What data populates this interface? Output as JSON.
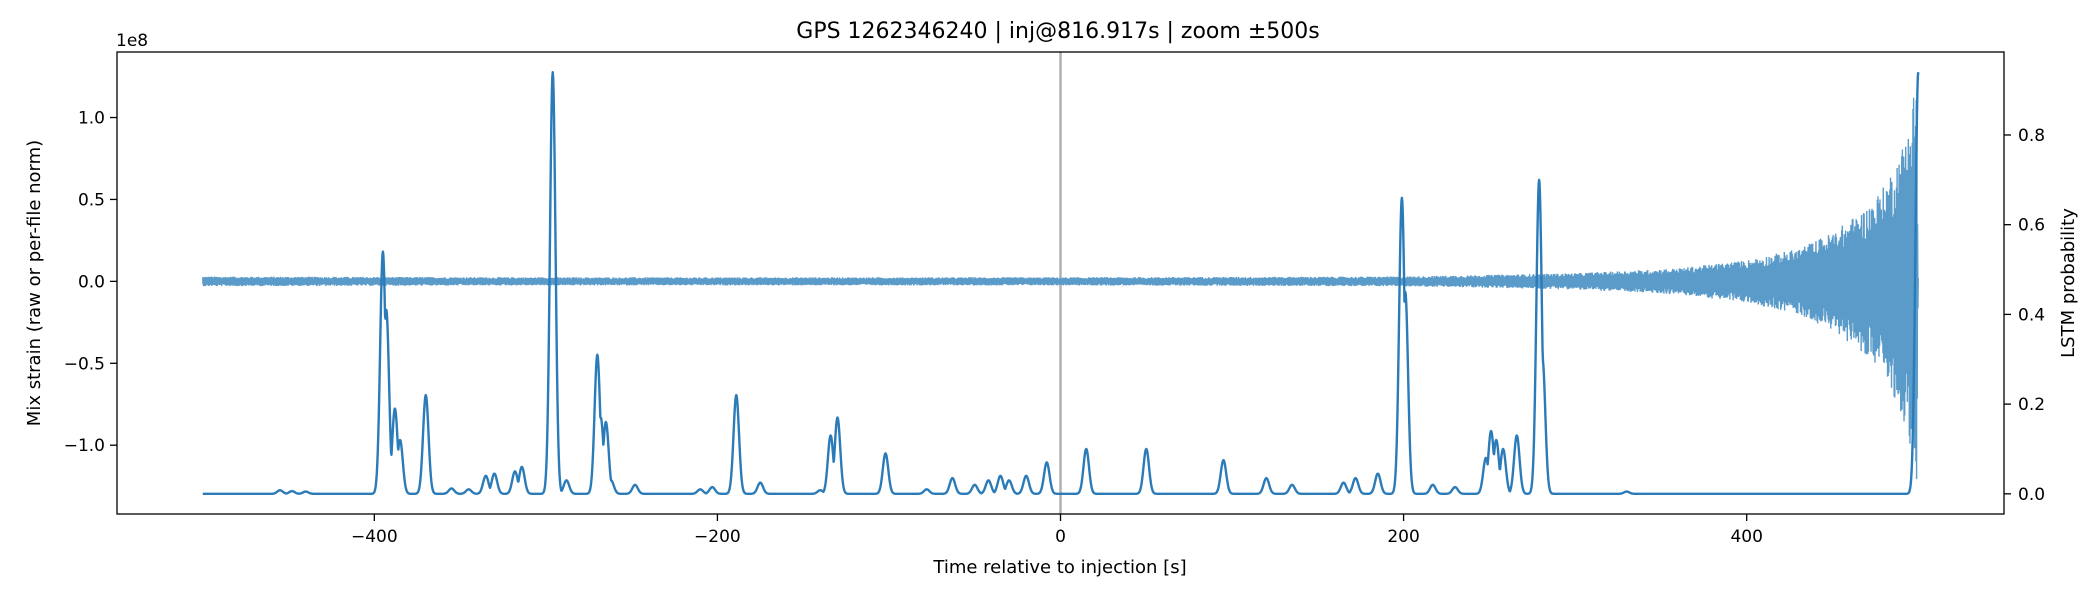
{
  "chart_data": {
    "type": "line",
    "title": "GPS 1262346240 | inj@816.917s | zoom ±500s",
    "xlabel": "Time relative to injection [s]",
    "ylabel_left": "Mix strain (raw or per-file norm)",
    "ylabel_right": "LSTM probability",
    "y_left_offset_label": "1e8",
    "xlim": [
      -550,
      550
    ],
    "ylim_left": [
      -1.42,
      1.4
    ],
    "ylim_right": [
      -0.045,
      0.985
    ],
    "xticks": [
      -400,
      -200,
      0,
      200,
      400
    ],
    "xtick_labels": [
      "−400",
      "−200",
      "0",
      "200",
      "400"
    ],
    "yticks_left": [
      -1.0,
      -0.5,
      0.0,
      0.5,
      1.0
    ],
    "ytick_labels_left": [
      "−1.0",
      "−0.5",
      "0.0",
      "0.5",
      "1.0"
    ],
    "yticks_right": [
      0.0,
      0.2,
      0.4,
      0.6,
      0.8
    ],
    "ytick_labels_right": [
      "0.0",
      "0.2",
      "0.4",
      "0.6",
      "0.8"
    ],
    "grid": false,
    "injection_marker_x": 0,
    "strain_series": {
      "color": "#5b9bc9",
      "x_range": [
        -500,
        500
      ],
      "baseline": 0.0,
      "noise_amplitude": 0.025,
      "envelope": [
        [
          -500,
          0.03
        ],
        [
          -300,
          0.025
        ],
        [
          0,
          0.025
        ],
        [
          200,
          0.03
        ],
        [
          300,
          0.05
        ],
        [
          360,
          0.08
        ],
        [
          400,
          0.13
        ],
        [
          430,
          0.2
        ],
        [
          450,
          0.3
        ],
        [
          470,
          0.45
        ],
        [
          480,
          0.58
        ],
        [
          490,
          0.8
        ],
        [
          495,
          1.0
        ],
        [
          499,
          1.3
        ],
        [
          500,
          0.0
        ]
      ]
    },
    "probability_series": {
      "color": "#2b7bb9",
      "baseline": 0.0,
      "x_range": [
        -500,
        500
      ],
      "peaks": [
        [
          -455,
          0.008
        ],
        [
          -448,
          0.006
        ],
        [
          -440,
          0.005
        ],
        [
          -395,
          0.54
        ],
        [
          -393,
          0.41
        ],
        [
          -388,
          0.19
        ],
        [
          -385,
          0.12
        ],
        [
          -370,
          0.22
        ],
        [
          -355,
          0.012
        ],
        [
          -345,
          0.01
        ],
        [
          -335,
          0.04
        ],
        [
          -330,
          0.045
        ],
        [
          -318,
          0.05
        ],
        [
          -314,
          0.06
        ],
        [
          -296,
          0.94
        ],
        [
          -288,
          0.03
        ],
        [
          -270,
          0.31
        ],
        [
          -268,
          0.17
        ],
        [
          -265,
          0.16
        ],
        [
          -262,
          0.03
        ],
        [
          -248,
          0.02
        ],
        [
          -210,
          0.01
        ],
        [
          -203,
          0.015
        ],
        [
          -189,
          0.22
        ],
        [
          -175,
          0.025
        ],
        [
          -140,
          0.008
        ],
        [
          -134,
          0.13
        ],
        [
          -130,
          0.17
        ],
        [
          -102,
          0.09
        ],
        [
          -78,
          0.01
        ],
        [
          -63,
          0.035
        ],
        [
          -50,
          0.02
        ],
        [
          -42,
          0.03
        ],
        [
          -35,
          0.04
        ],
        [
          -30,
          0.03
        ],
        [
          -20,
          0.04
        ],
        [
          -8,
          0.07
        ],
        [
          15,
          0.1
        ],
        [
          50,
          0.1
        ],
        [
          95,
          0.075
        ],
        [
          120,
          0.035
        ],
        [
          135,
          0.02
        ],
        [
          165,
          0.025
        ],
        [
          172,
          0.035
        ],
        [
          185,
          0.045
        ],
        [
          199,
          0.66
        ],
        [
          201,
          0.45
        ],
        [
          217,
          0.02
        ],
        [
          230,
          0.015
        ],
        [
          248,
          0.08
        ],
        [
          251,
          0.14
        ],
        [
          254,
          0.12
        ],
        [
          258,
          0.1
        ],
        [
          266,
          0.13
        ],
        [
          279,
          0.7
        ],
        [
          281,
          0.3
        ],
        [
          330,
          0.005
        ],
        [
          500,
          0.94
        ]
      ]
    }
  }
}
